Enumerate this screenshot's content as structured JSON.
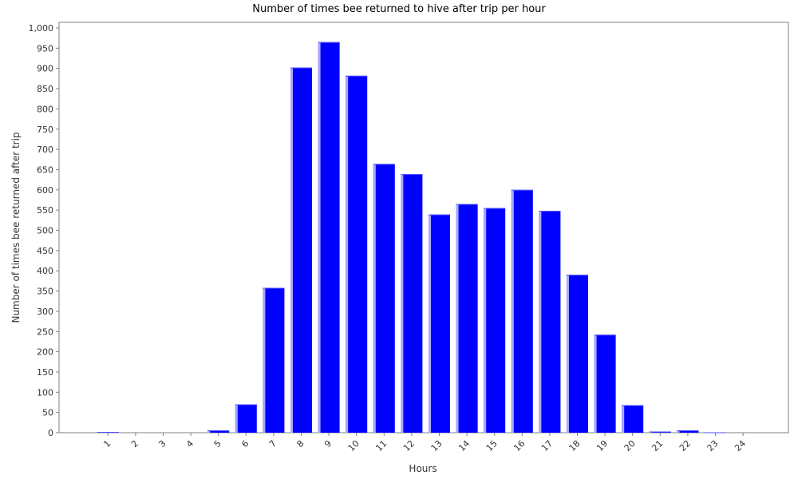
{
  "chart_data": {
    "type": "bar",
    "title": "Number of times bee returned to hive after trip per hour",
    "xlabel": "Hours",
    "ylabel": "Number of times bee returned after trip",
    "categories": [
      "1",
      "2",
      "3",
      "4",
      "5",
      "6",
      "7",
      "8",
      "9",
      "10",
      "11",
      "12",
      "13",
      "14",
      "15",
      "16",
      "17",
      "18",
      "19",
      "20",
      "21",
      "22",
      "23",
      "24"
    ],
    "values": [
      2,
      0,
      0,
      0,
      6,
      70,
      358,
      902,
      965,
      882,
      664,
      639,
      539,
      565,
      555,
      600,
      548,
      390,
      242,
      68,
      3,
      6,
      1,
      0
    ],
    "ylim": [
      0,
      1000
    ],
    "yticks": [
      0,
      50,
      100,
      150,
      200,
      250,
      300,
      350,
      400,
      450,
      500,
      550,
      600,
      650,
      700,
      750,
      800,
      850,
      900,
      950,
      1000
    ],
    "ytick_labels": [
      "0",
      "50",
      "100",
      "150",
      "200",
      "250",
      "300",
      "350",
      "400",
      "450",
      "500",
      "550",
      "600",
      "650",
      "700",
      "750",
      "800",
      "850",
      "900",
      "950",
      "1,000"
    ],
    "grid": false,
    "legend": "none",
    "bar_color": "#0000ff",
    "bar_highlight_color": "#a8a8ff"
  }
}
